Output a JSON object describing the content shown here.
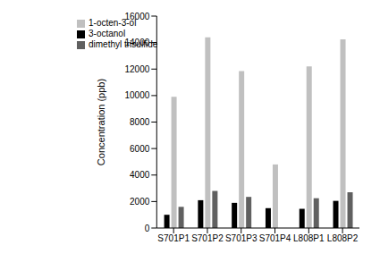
{
  "chart_data": {
    "type": "bar",
    "y_label": "Concentration (ppb)",
    "categories": [
      "S701P1",
      "S701P2",
      "S701P3",
      "S701P4",
      "L808P1",
      "L808P2"
    ],
    "series": [
      {
        "name": "3-octanol",
        "color": "#000000",
        "values": [
          1000,
          2100,
          1900,
          1500,
          1450,
          2050
        ]
      },
      {
        "name": "1-octen-3-ol",
        "color": "#c0c0c0",
        "values": [
          9900,
          14400,
          11850,
          4800,
          12200,
          14250
        ]
      },
      {
        "name": "dimethyl trisulfide",
        "color": "#606060",
        "values": [
          1600,
          2800,
          2350,
          0,
          2250,
          2700
        ]
      }
    ],
    "ylim": [
      0,
      16000
    ],
    "yticks": [
      0,
      2000,
      4000,
      6000,
      8000,
      10000,
      12000,
      14000,
      16000
    ],
    "grid": false,
    "legend": "upper left"
  }
}
